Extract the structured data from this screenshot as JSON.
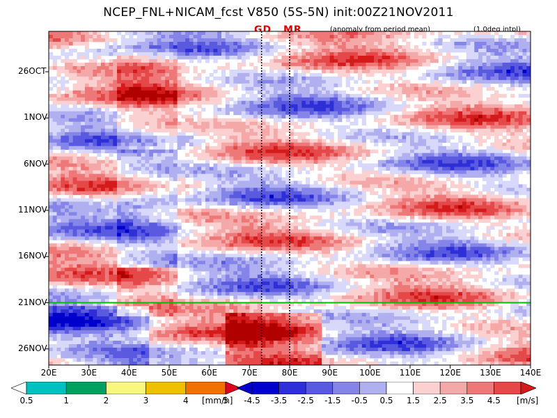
{
  "title": "NCEP_FNL+NICAM_fcst V850 (5S-5N) init:00Z21NOV2011",
  "subtitle_left": "(anomaly from period mean)",
  "subtitle_right": "(1.0deg intpl)",
  "markers": {
    "gd": "GD",
    "mr": "MR",
    "color": "#e00000"
  },
  "colors": {
    "negative": [
      "#0000cc",
      "#2f2fd8",
      "#5a5ae0",
      "#8585e9",
      "#b0b0f0",
      "#d8d8fa"
    ],
    "positive": [
      "#fbd0d0",
      "#f5a8a8",
      "#ee7878",
      "#e54848",
      "#d41a1a",
      "#b00000"
    ],
    "precip": [
      "#ffffff",
      "#00c0c0",
      "#00a060",
      "#f8f880",
      "#f0c000",
      "#f07000",
      "#e00020"
    ],
    "init_line": "#00c000"
  },
  "chart_data": {
    "type": "heatmap",
    "description_axes": "Hovmoller: x = longitude, y = time (top older)",
    "x_ticks": [
      "20E",
      "30E",
      "40E",
      "50E",
      "60E",
      "70E",
      "80E",
      "90E",
      "100E",
      "110E",
      "120E",
      "130E",
      "140E"
    ],
    "x_range": [
      20,
      140
    ],
    "y_ticks": [
      "26OCT",
      "1NOV",
      "6NOV",
      "11NOV",
      "16NOV",
      "21NOV",
      "26NOV"
    ],
    "init_label": "21NOV",
    "reference_lines_lon": [
      73,
      80
    ],
    "v850_colorbar": {
      "labels": [
        "-4.5",
        "-3.5",
        "-2.5",
        "-1.5",
        "-0.5",
        "0.5",
        "1.5",
        "2.5",
        "3.5",
        "4.5"
      ],
      "unit": "[m/s]"
    },
    "precip_colorbar": {
      "labels": [
        "0.5",
        "1",
        "2",
        "3",
        "4",
        "5"
      ],
      "unit": "[mm/h]"
    }
  }
}
